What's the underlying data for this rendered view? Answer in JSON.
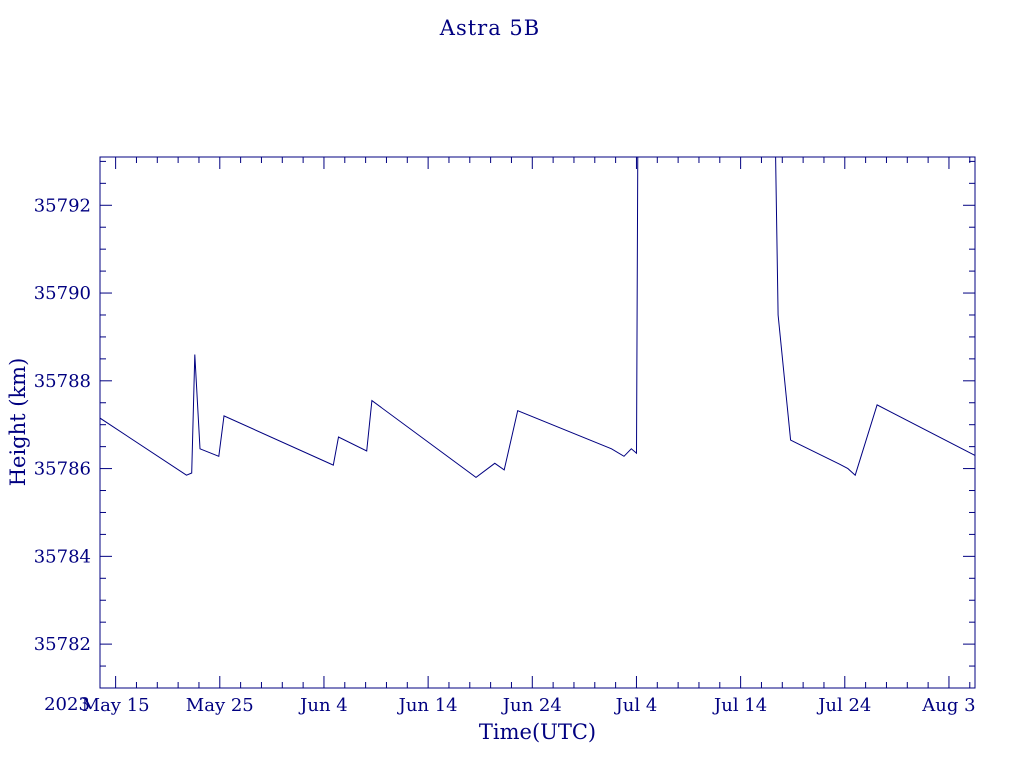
{
  "chart_data": {
    "type": "line",
    "title": "Astra 5B",
    "xlabel": "Time(UTC)",
    "ylabel": "Height (km)",
    "year_label": "2023",
    "line_color": "#000080",
    "x_axis": {
      "day_zero": "2023 May 15",
      "tick_days": [
        0,
        10,
        20,
        30,
        40,
        50,
        60,
        70,
        80
      ],
      "tick_labels": [
        "May 15",
        "May 25",
        "Jun 4",
        "Jun 14",
        "Jun 24",
        "Jul 4",
        "Jul 14",
        "Jul 24",
        "Aug 3"
      ],
      "minor_step_days": 2,
      "range_days": [
        -1.5,
        82.5
      ]
    },
    "y_axis": {
      "ticks": [
        35782,
        35784,
        35786,
        35788,
        35790,
        35792
      ],
      "minor_step": 0.5,
      "range": [
        35781.0,
        35793.1
      ]
    },
    "series": [
      {
        "name": "height_km",
        "points_day_height": [
          [
            -1.5,
            35787.15
          ],
          [
            6.8,
            35785.85
          ],
          [
            7.3,
            35785.9
          ],
          [
            7.6,
            35788.6
          ],
          [
            8.1,
            35786.45
          ],
          [
            9.9,
            35786.28
          ],
          [
            10.4,
            35787.2
          ],
          [
            20.9,
            35786.08
          ],
          [
            21.4,
            35786.72
          ],
          [
            24.1,
            35786.4
          ],
          [
            24.6,
            35787.55
          ],
          [
            34.6,
            35785.8
          ],
          [
            36.4,
            35786.12
          ],
          [
            37.3,
            35785.97
          ],
          [
            38.6,
            35787.32
          ],
          [
            47.6,
            35786.45
          ],
          [
            48.8,
            35786.28
          ],
          [
            49.5,
            35786.45
          ],
          [
            50.0,
            35786.35
          ],
          [
            50.2,
            35797.0
          ],
          [
            63.1,
            35797.0
          ],
          [
            63.6,
            35789.5
          ],
          [
            64.8,
            35786.65
          ],
          [
            65.2,
            35786.6
          ],
          [
            69.5,
            35786.1
          ],
          [
            70.3,
            35786.0
          ],
          [
            71.0,
            35785.85
          ],
          [
            73.1,
            35787.45
          ],
          [
            82.5,
            35786.3
          ]
        ]
      }
    ]
  }
}
